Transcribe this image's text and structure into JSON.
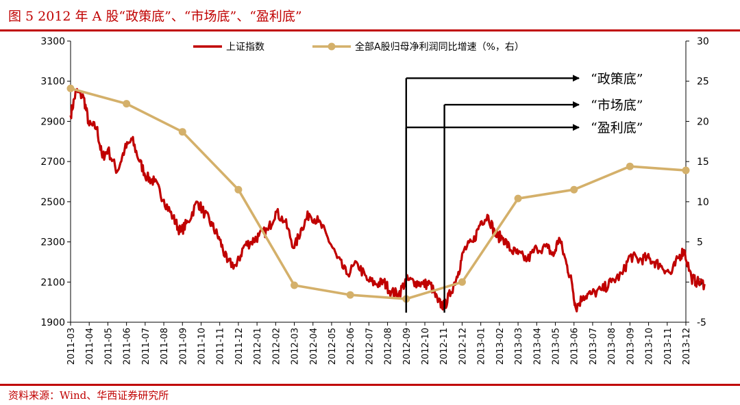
{
  "header": {
    "title": "图 5 2012 年 A 股“政策底”、“市场底”、“盈利底”"
  },
  "footer": {
    "source": "资料来源：Wind、华西证券研究所"
  },
  "chart_data": {
    "type": "line",
    "categories": [
      "2011-03",
      "2011-04",
      "2011-05",
      "2011-06",
      "2011-07",
      "2011-08",
      "2011-09",
      "2011-10",
      "2011-11",
      "2011-12",
      "2012-01",
      "2012-02",
      "2012-03",
      "2012-04",
      "2012-05",
      "2012-06",
      "2012-07",
      "2012-08",
      "2012-09",
      "2012-10",
      "2012-11",
      "2012-12",
      "2013-01",
      "2013-02",
      "2013-03",
      "2013-04",
      "2013-05",
      "2013-06",
      "2013-07",
      "2013-08",
      "2013-09",
      "2013-10",
      "2013-11",
      "2013-12"
    ],
    "y_left": {
      "min": 1900,
      "max": 3300,
      "ticks": [
        1900,
        2100,
        2300,
        2500,
        2700,
        2900,
        3100,
        3300
      ]
    },
    "y_right": {
      "min": -5,
      "max": 30,
      "ticks": [
        -5,
        0,
        5,
        10,
        15,
        20,
        25,
        30
      ]
    },
    "legend": {
      "position": "top"
    },
    "series": [
      {
        "name": "上证指数",
        "axis": "left",
        "color": "#c00000",
        "anchors": [
          [
            0,
            2930
          ],
          [
            0.3,
            3050
          ],
          [
            0.7,
            3020
          ],
          [
            1.0,
            2880
          ],
          [
            1.4,
            2870
          ],
          [
            1.7,
            2720
          ],
          [
            2.0,
            2760
          ],
          [
            2.5,
            2650
          ],
          [
            2.9,
            2760
          ],
          [
            3.3,
            2810
          ],
          [
            3.7,
            2700
          ],
          [
            4.1,
            2620
          ],
          [
            4.5,
            2600
          ],
          [
            5.0,
            2510
          ],
          [
            5.5,
            2420
          ],
          [
            5.9,
            2350
          ],
          [
            6.3,
            2400
          ],
          [
            6.8,
            2500
          ],
          [
            7.2,
            2440
          ],
          [
            7.6,
            2380
          ],
          [
            8.0,
            2310
          ],
          [
            8.4,
            2200
          ],
          [
            8.9,
            2180
          ],
          [
            9.3,
            2280
          ],
          [
            9.7,
            2300
          ],
          [
            10.1,
            2330
          ],
          [
            10.6,
            2360
          ],
          [
            11.0,
            2450
          ],
          [
            11.5,
            2400
          ],
          [
            12.0,
            2270
          ],
          [
            12.4,
            2370
          ],
          [
            12.8,
            2440
          ],
          [
            13.3,
            2400
          ],
          [
            13.8,
            2320
          ],
          [
            14.3,
            2220
          ],
          [
            14.8,
            2140
          ],
          [
            15.4,
            2190
          ],
          [
            15.9,
            2110
          ],
          [
            16.4,
            2090
          ],
          [
            16.8,
            2100
          ],
          [
            17.2,
            2050
          ],
          [
            17.6,
            2040
          ],
          [
            18.0,
            2110
          ],
          [
            18.5,
            2100
          ],
          [
            18.9,
            2090
          ],
          [
            19.3,
            2090
          ],
          [
            19.7,
            2000
          ],
          [
            20.05,
            1980
          ],
          [
            20.4,
            2050
          ],
          [
            20.8,
            2150
          ],
          [
            21.1,
            2260
          ],
          [
            21.6,
            2300
          ],
          [
            22.0,
            2400
          ],
          [
            22.4,
            2430
          ],
          [
            22.8,
            2330
          ],
          [
            23.2,
            2320
          ],
          [
            23.6,
            2260
          ],
          [
            24.0,
            2240
          ],
          [
            24.5,
            2210
          ],
          [
            25.0,
            2270
          ],
          [
            25.6,
            2270
          ],
          [
            25.9,
            2230
          ],
          [
            26.2,
            2320
          ],
          [
            26.6,
            2190
          ],
          [
            26.9,
            2090
          ],
          [
            27.1,
            1970
          ],
          [
            27.5,
            2030
          ],
          [
            27.9,
            2040
          ],
          [
            28.5,
            2060
          ],
          [
            29.0,
            2100
          ],
          [
            29.6,
            2140
          ],
          [
            30.0,
            2230
          ],
          [
            30.5,
            2210
          ],
          [
            30.9,
            2220
          ],
          [
            31.3,
            2200
          ],
          [
            31.7,
            2180
          ],
          [
            32.2,
            2140
          ],
          [
            32.6,
            2220
          ],
          [
            32.9,
            2260
          ],
          [
            33.3,
            2120
          ],
          [
            33.6,
            2100
          ],
          [
            34.0,
            2090
          ]
        ]
      },
      {
        "name": "全部A股归母净利润同比增速（%，右）",
        "axis": "right",
        "color": "#d4b06a",
        "points": [
          [
            0,
            24.1
          ],
          [
            3,
            22.2
          ],
          [
            6,
            18.7
          ],
          [
            9,
            11.5
          ],
          [
            12,
            -0.4
          ],
          [
            15,
            -1.6
          ],
          [
            18,
            -2.1
          ],
          [
            21,
            0.0
          ],
          [
            24,
            10.4
          ],
          [
            27,
            11.5
          ],
          [
            30,
            14.4
          ],
          [
            33,
            13.9
          ]
        ]
      }
    ],
    "annotations": [
      {
        "label": "“政策底”",
        "x_index": 18.0,
        "arrow_y_left": 3115
      },
      {
        "label": "“市场底”",
        "x_index": 20.05,
        "arrow_y_left": 2983
      },
      {
        "label": "“盈利底”",
        "x_index": 18.0,
        "arrow_y_left": 2870
      }
    ]
  }
}
